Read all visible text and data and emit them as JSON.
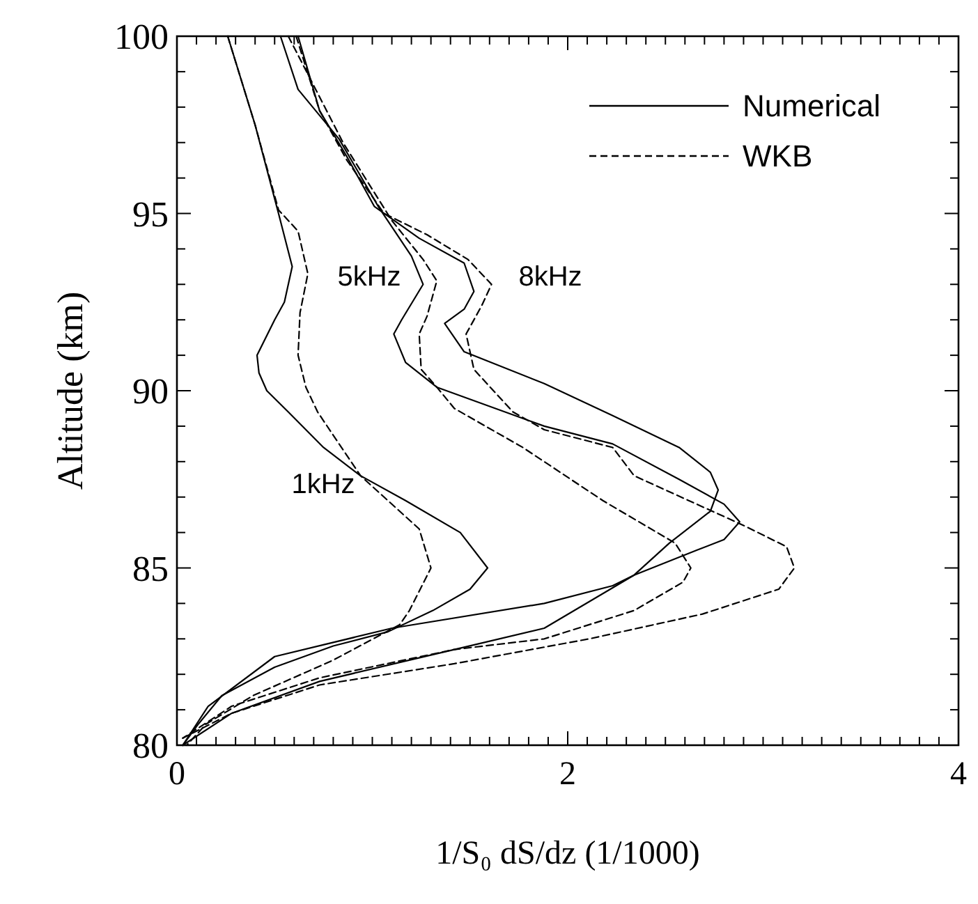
{
  "chart_data": {
    "type": "line",
    "xlabel": "1/S₀ dS/dz (1/1000)",
    "ylabel": "Altitude (km)",
    "xlim": [
      0,
      4
    ],
    "ylim": [
      80,
      100
    ],
    "xticks": [
      0,
      {
        "value": 0.1,
        "label": null
      },
      {
        "value": 0.2,
        "label": null
      },
      {
        "value": 0.3,
        "label": null
      },
      {
        "value": 0.4,
        "label": null
      },
      {
        "value": 0.5,
        "label": null
      },
      {
        "value": 0.6,
        "label": null
      },
      {
        "value": 0.7,
        "label": null
      },
      {
        "value": 0.8,
        "label": null
      },
      {
        "value": 0.9,
        "label": null
      },
      {
        "value": 1,
        "label": null
      },
      {
        "value": 1.1,
        "label": null
      },
      {
        "value": 1.2,
        "label": null
      },
      {
        "value": 1.3,
        "label": null
      },
      {
        "value": 1.4,
        "label": null
      },
      {
        "value": 1.5,
        "label": null
      },
      {
        "value": 1.6,
        "label": null
      },
      {
        "value": 1.7,
        "label": null
      },
      {
        "value": 1.8,
        "label": null
      },
      {
        "value": 1.9,
        "label": null
      },
      2,
      {
        "value": 2.1,
        "label": null
      },
      {
        "value": 2.2,
        "label": null
      },
      {
        "value": 2.3,
        "label": null
      },
      {
        "value": 2.4,
        "label": null
      },
      {
        "value": 2.5,
        "label": null
      },
      {
        "value": 2.6,
        "label": null
      },
      {
        "value": 2.7,
        "label": null
      },
      {
        "value": 2.8,
        "label": null
      },
      {
        "value": 2.9,
        "label": null
      },
      {
        "value": 3,
        "label": null
      },
      {
        "value": 3.1,
        "label": null
      },
      {
        "value": 3.2,
        "label": null
      },
      {
        "value": 3.3,
        "label": null
      },
      {
        "value": 3.4,
        "label": null
      },
      {
        "value": 3.5,
        "label": null
      },
      {
        "value": 3.6,
        "label": null
      },
      {
        "value": 3.7,
        "label": null
      },
      {
        "value": 3.8,
        "label": null
      },
      {
        "value": 3.9,
        "label": null
      },
      4
    ],
    "yticks": [
      80,
      {
        "value": 81,
        "label": null
      },
      {
        "value": 82,
        "label": null
      },
      {
        "value": 83,
        "label": null
      },
      {
        "value": 84,
        "label": null
      },
      85,
      {
        "value": 86,
        "label": null
      },
      {
        "value": 87,
        "label": null
      },
      {
        "value": 88,
        "label": null
      },
      {
        "value": 89,
        "label": null
      },
      90,
      {
        "value": 91,
        "label": null
      },
      {
        "value": 92,
        "label": null
      },
      {
        "value": 93,
        "label": null
      },
      {
        "value": 94,
        "label": null
      },
      95,
      {
        "value": 96,
        "label": null
      },
      {
        "value": 97,
        "label": null
      },
      {
        "value": 98,
        "label": null
      },
      {
        "value": 99,
        "label": null
      },
      100
    ],
    "legend": "top right",
    "marker": "none",
    "grid": false,
    "annotations": [
      "1kHz",
      "5kHz",
      "8kHz"
    ],
    "series": [
      {
        "name": "Numerical",
        "color": "#000000",
        "line_style": "solid",
        "x": [
          0.26,
          0.4,
          0.52,
          0.59,
          0.55,
          0.5,
          0.41,
          0.42,
          0.46,
          0.57,
          0.75,
          0.94,
          1.17,
          1.45,
          1.59,
          1.5,
          1.31,
          1.08,
          0.8,
          0.5,
          0.23,
          0.11,
          0.03
        ],
        "values": [
          100,
          97.5,
          95,
          93.5,
          92.5,
          92,
          91,
          90.5,
          90,
          89.4,
          88.4,
          87.6,
          86.9,
          86,
          85,
          84.4,
          83.8,
          83.2,
          82.8,
          82.2,
          81.4,
          80.6,
          80
        ]
      },
      {
        "name": "WKB",
        "color": "#000000",
        "line_style": "dashed",
        "x": [
          0.26,
          0.4,
          0.52,
          0.62,
          0.67,
          0.63,
          0.62,
          0.66,
          0.72,
          0.94,
          1.24,
          1.3,
          1.19,
          1.14,
          0.8,
          0.39,
          0.15,
          0.05
        ],
        "values": [
          100,
          97.5,
          95.1,
          94.5,
          93.3,
          92.2,
          91,
          90.1,
          89.4,
          87.6,
          86.1,
          85,
          83.8,
          83.4,
          82.4,
          81.4,
          80.6,
          80
        ]
      },
      {
        "color": "#000000",
        "line_style": "solid",
        "x": [
          0.53,
          0.62,
          0.83,
          1.03,
          1.2,
          1.26,
          1.15,
          1.11,
          1.17,
          1.33,
          1.88,
          2.23,
          2.57,
          2.8,
          2.88,
          2.8,
          2.66,
          2.34,
          2.23,
          1.88,
          1.1,
          0.5,
          0.16,
          0.03
        ],
        "values": [
          100,
          98.5,
          97.1,
          95.2,
          93.8,
          93,
          92,
          91.6,
          90.8,
          90.1,
          89,
          88.5,
          87.5,
          86.8,
          86.3,
          85.8,
          85.5,
          84.8,
          84.5,
          84,
          83.3,
          82.5,
          81.1,
          80
        ]
      },
      {
        "color": "#000000",
        "line_style": "dashed",
        "x": [
          0.57,
          0.85,
          1.1,
          1.26,
          1.33,
          1.28,
          1.24,
          1.25,
          1.33,
          1.42,
          1.77,
          2.18,
          2.55,
          2.63,
          2.59,
          2.34,
          1.88,
          1.42,
          0.73,
          0.28,
          0.03
        ],
        "values": [
          100,
          97,
          94.8,
          93.7,
          93.1,
          92.1,
          91.6,
          90.6,
          90.1,
          89.5,
          88.4,
          86.9,
          85.7,
          85,
          84.6,
          83.8,
          83,
          82.7,
          81.9,
          81.1,
          80.2
        ]
      },
      {
        "color": "#000000",
        "line_style": "solid",
        "x": [
          0.62,
          0.73,
          0.87,
          1.01,
          1.24,
          1.47,
          1.52,
          1.47,
          1.37,
          1.47,
          1.88,
          2.23,
          2.57,
          2.73,
          2.77,
          2.73,
          2.52,
          2.34,
          1.88,
          1.42,
          0.73,
          0.28,
          0.03
        ],
        "values": [
          100,
          97.9,
          96.6,
          95.2,
          94.3,
          93.6,
          92.8,
          92.3,
          91.9,
          91.1,
          90.2,
          89.3,
          88.4,
          87.7,
          87.2,
          86.6,
          85.7,
          84.8,
          83.3,
          82.7,
          81.8,
          80.9,
          80
        ]
      },
      {
        "color": "#000000",
        "line_style": "dashed",
        "x": [
          0.61,
          0.73,
          0.87,
          1.06,
          1.28,
          1.49,
          1.61,
          1.56,
          1.48,
          1.52,
          1.72,
          1.88,
          2.23,
          2.34,
          2.9,
          3.12,
          3.16,
          3.08,
          2.69,
          2.11,
          1.42,
          0.73,
          0.28,
          0.03
        ],
        "values": [
          100,
          97.9,
          96.5,
          95,
          94.4,
          93.7,
          93,
          92.4,
          91.6,
          90.6,
          89.4,
          88.9,
          88.4,
          87.6,
          86.2,
          85.6,
          85,
          84.4,
          83.7,
          83,
          82.3,
          81.7,
          80.9,
          80.2
        ]
      }
    ]
  }
}
